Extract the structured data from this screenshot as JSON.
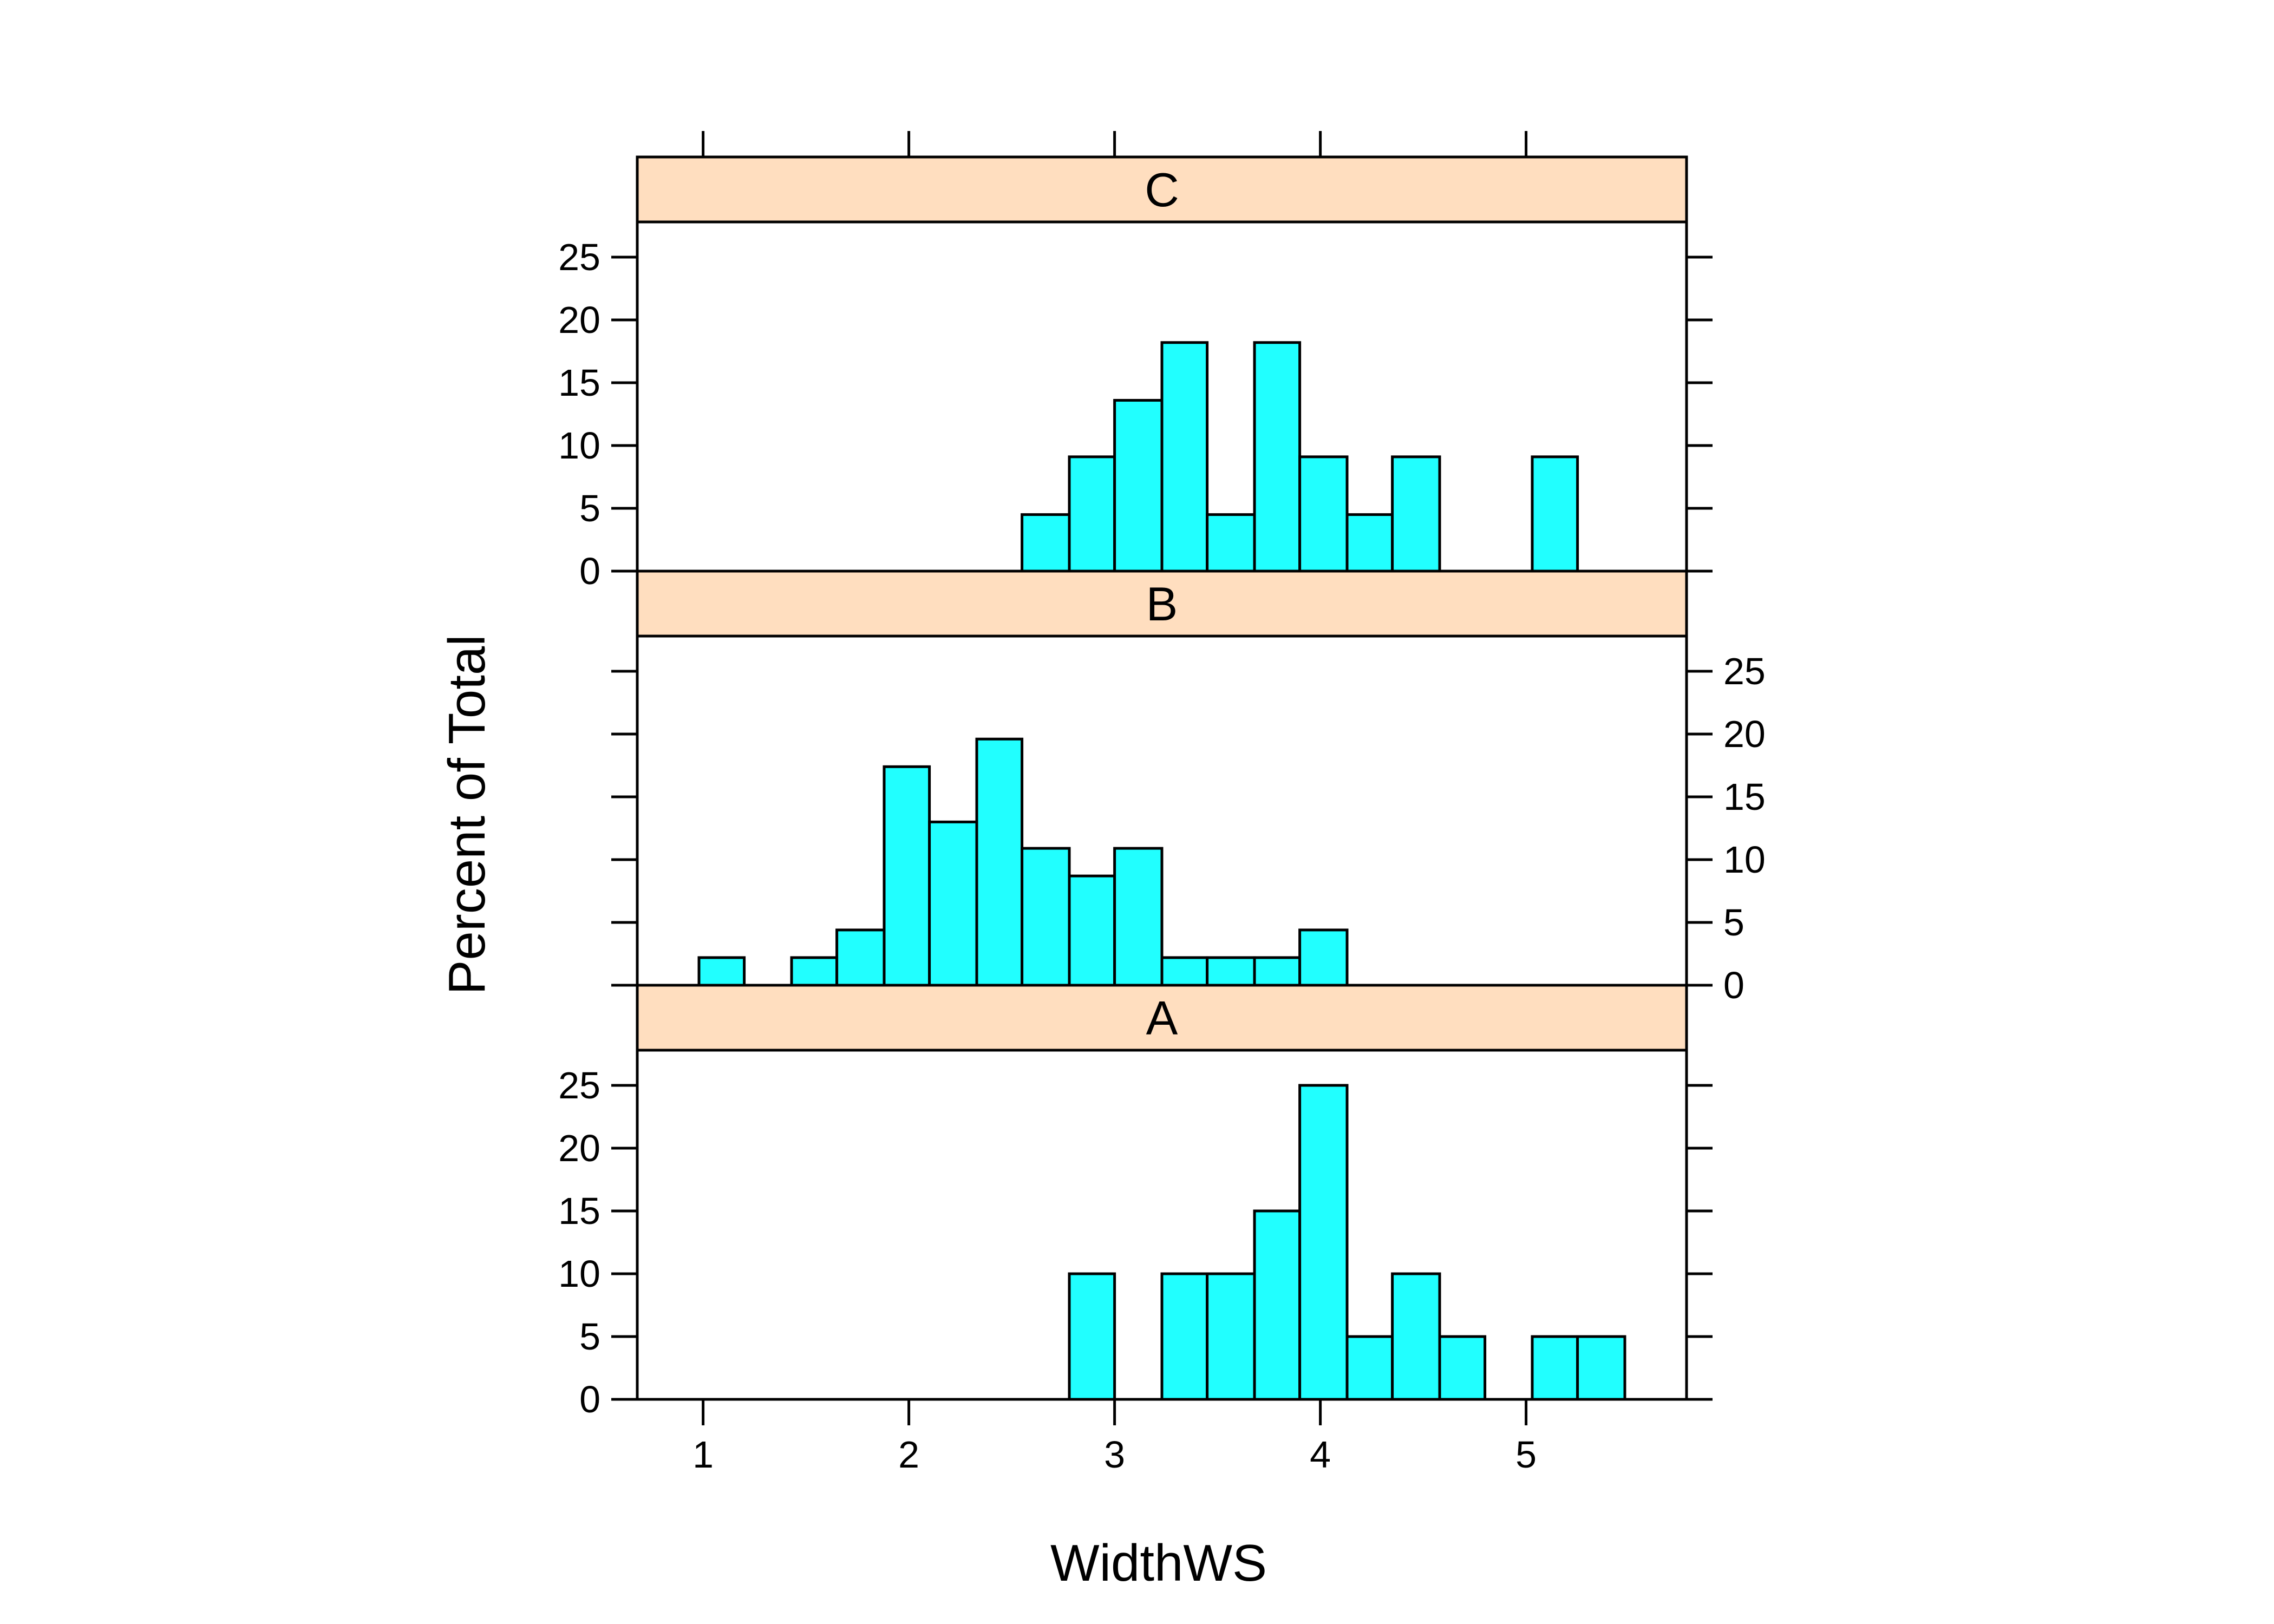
{
  "chart_data": {
    "type": "bar",
    "subtype": "histogram",
    "xlabel": "WidthWS",
    "ylabel": "Percent of Total",
    "xlim": [
      0.68,
      5.78
    ],
    "ylim": [
      0,
      27.8
    ],
    "x_ticks": [
      1,
      2,
      3,
      4,
      5
    ],
    "y_ticks": [
      0,
      5,
      10,
      15,
      20,
      25
    ],
    "bin_edges": [
      0.98,
      1.2,
      1.43,
      1.65,
      1.88,
      2.1,
      2.33,
      2.55,
      2.78,
      3.0,
      3.23,
      3.45,
      3.68,
      3.9,
      4.13,
      4.35,
      4.58,
      4.8,
      5.03,
      5.25,
      5.48
    ],
    "bar_color": "#21FFFF",
    "strip_color": "#FFDEBF",
    "panels": [
      {
        "name": "C",
        "values": [
          0,
          0,
          0,
          0,
          0,
          0,
          0,
          4.5,
          9.1,
          13.6,
          18.2,
          4.5,
          18.2,
          9.1,
          4.5,
          9.1,
          0,
          0,
          9.1,
          0
        ]
      },
      {
        "name": "B",
        "values": [
          2.2,
          0,
          2.2,
          4.4,
          17.4,
          13.0,
          19.6,
          10.9,
          8.7,
          10.9,
          2.2,
          2.2,
          2.2,
          4.4,
          0,
          0,
          0,
          0,
          0,
          0
        ]
      },
      {
        "name": "A",
        "values": [
          0,
          0,
          0,
          0,
          0,
          0,
          0,
          0,
          10,
          0,
          10,
          10,
          15,
          25,
          5,
          10,
          5,
          0,
          5,
          5
        ]
      }
    ]
  },
  "colors": {
    "bar": "#21FFFF",
    "strip": "#FFDEBF",
    "line": "#000000"
  }
}
